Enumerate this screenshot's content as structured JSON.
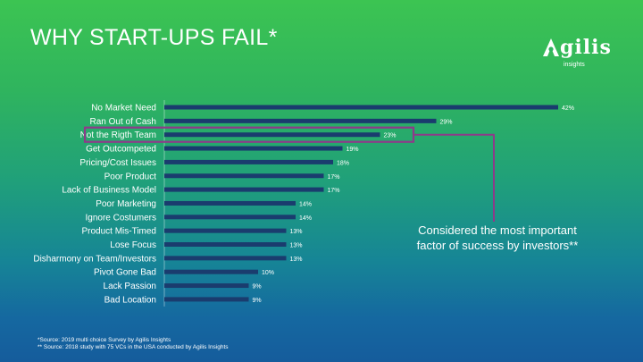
{
  "title": "WHY START-UPS FAIL*",
  "logo": {
    "word": "gilis",
    "subtitle": "insights"
  },
  "callout": "Considered the most important factor of success by investors**",
  "footnotes": [
    "*Source: 2019 multi choice Survey by Agilis Insights",
    "** Source: 2018 study with 75 VCs in the USA conducted by Agilis Insights"
  ],
  "colors": {
    "bar": "#1a3c6e",
    "highlight": "#8e3a8a",
    "text": "#ffffff"
  },
  "chart_data": {
    "type": "bar",
    "orientation": "horizontal",
    "categories": [
      "No Market Need",
      "Ran Out of Cash",
      "Not the Rigth Team",
      "Get Outcompeted",
      "Pricing/Cost Issues",
      "Poor Product",
      "Lack of Business Model",
      "Poor Marketing",
      "Ignore Costumers",
      "Product Mis-Timed",
      "Lose Focus",
      "Disharmony on Team/Investors",
      "Pivot Gone Bad",
      "Lack Passion",
      "Bad Location"
    ],
    "values": [
      42,
      29,
      23,
      19,
      18,
      17,
      17,
      14,
      14,
      13,
      13,
      13,
      10,
      9,
      9
    ],
    "value_labels": [
      "42%",
      "29%",
      "23%",
      "19%",
      "18%",
      "17%",
      "17%",
      "14%",
      "14%",
      "13%",
      "13%",
      "13%",
      "10%",
      "9%",
      "9%"
    ],
    "highlight_category": "Not the Rigth Team",
    "xlim": [
      0,
      45
    ]
  }
}
